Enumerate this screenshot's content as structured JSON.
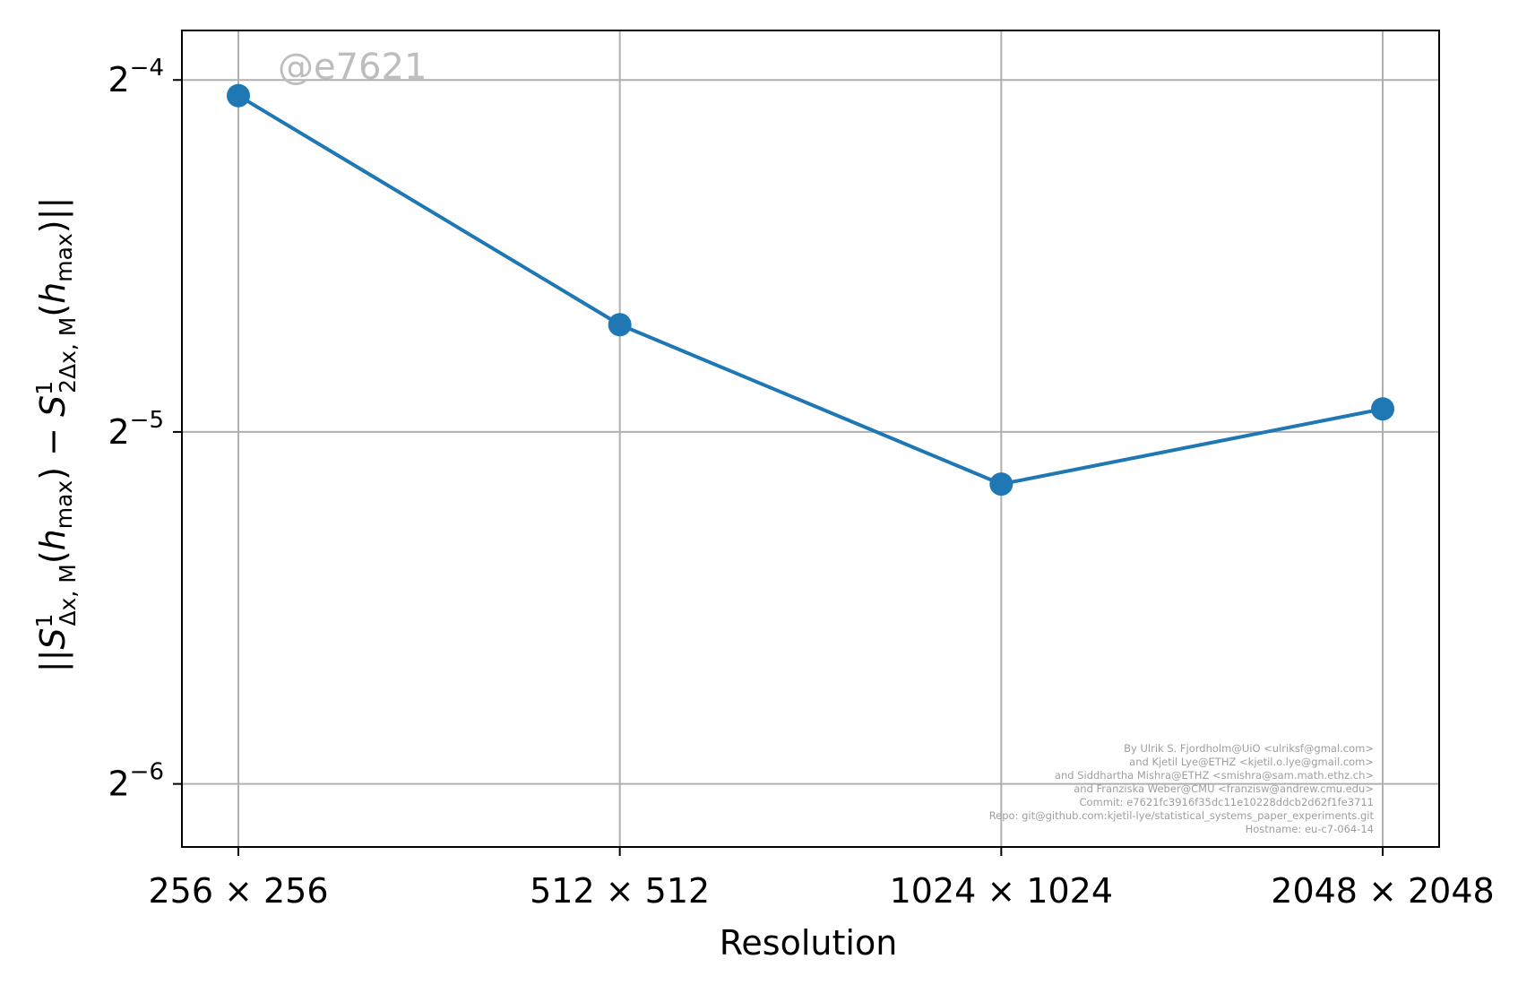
{
  "chart_data": {
    "type": "line",
    "xlabel": "Resolution",
    "ylabel": {
      "norm": "||",
      "s1": "S",
      "sup1": "1",
      "sub1": "Δx, M",
      "arg1_open": "(",
      "arg1_h": "h",
      "arg1_sub": "max",
      "arg1_close": ")",
      "minus": " − ",
      "s2": "S",
      "sup2": "1",
      "sub2": "2Δx, M",
      "arg2_open": "(",
      "arg2_h": "h",
      "arg2_sub": "max",
      "arg2_close": ")",
      "norm_close": "||"
    },
    "categories": [
      "256 × 256",
      "512 × 512",
      "1024 × 1024",
      "2048 × 2048"
    ],
    "series": [
      {
        "color": "#1f77b4",
        "marker": "circle",
        "values": [
          0.0606,
          0.0386,
          0.0282,
          0.0327
        ]
      }
    ],
    "y_scale": "log2",
    "ylim": [
      0.0138,
      0.0689
    ],
    "yticks": [
      {
        "value": 0.0625,
        "base": "2",
        "exp": "−4"
      },
      {
        "value": 0.03125,
        "base": "2",
        "exp": "−5"
      },
      {
        "value": 0.015625,
        "base": "2",
        "exp": "−6"
      }
    ],
    "grid": true
  },
  "watermark": "@e7621",
  "credits": [
    "By Ulrik S. Fjordholm@UiO <ulriksf@gmal.com>",
    "and Kjetil Lye@ETHZ <kjetil.o.lye@gmail.com>",
    "and Siddhartha Mishra@ETHZ <smishra@sam.math.ethz.ch>",
    "and Franziska Weber@CMU <franzisw@andrew.cmu.edu>",
    "Commit: e7621fc3916f35dc11e10228ddcb2d62f1fe3711",
    "Repo: git@github.com:kjetil-lye/statistical_systems_paper_experiments.git",
    "Hostname: eu-c7-064-14"
  ]
}
